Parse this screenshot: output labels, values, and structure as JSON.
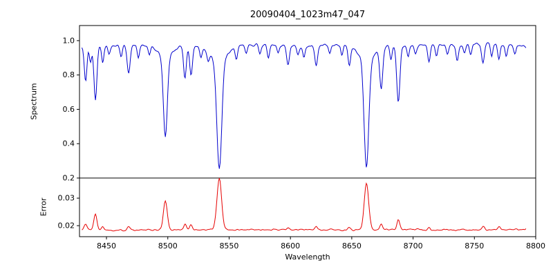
{
  "chart_data": {
    "type": "line",
    "title": "20090404_1023m47_047",
    "xlabel": "Wavelength",
    "x_axis_range": [
      8428,
      8800
    ],
    "x_data_range": [
      8430,
      8792
    ],
    "x_ticks": [
      8450,
      8500,
      8550,
      8600,
      8650,
      8700,
      8750,
      8800
    ],
    "x_tick_labels": [
      "8450",
      "8500",
      "8550",
      "8600",
      "8650",
      "8700",
      "8750",
      "8800"
    ],
    "axis_color": "#000000",
    "background": "#ffffff",
    "subplots": [
      {
        "name": "spectrum",
        "ylabel": "Spectrum",
        "color": "#0000cc",
        "ylim": [
          0.2,
          1.088
        ],
        "y_ticks": [
          0.2,
          0.4,
          0.6,
          0.8,
          1.0
        ],
        "y_tick_labels": [
          "0.2",
          "0.4",
          "0.6",
          "0.8",
          "1.0"
        ],
        "continuum": 0.972,
        "noise_amplitude": 0.012,
        "absorption_lines": [
          {
            "center": 8427,
            "depth": 0.06,
            "width": 1.0
          },
          {
            "center": 8433,
            "depth": 0.2,
            "width": 1.1
          },
          {
            "center": 8437,
            "depth": 0.1,
            "width": 0.9
          },
          {
            "center": 8441,
            "depth": 0.32,
            "width": 1.2
          },
          {
            "center": 8447,
            "depth": 0.1,
            "width": 0.9
          },
          {
            "center": 8452,
            "depth": 0.05,
            "width": 0.9
          },
          {
            "center": 8462,
            "depth": 0.06,
            "width": 0.9
          },
          {
            "center": 8468,
            "depth": 0.16,
            "width": 1.2
          },
          {
            "center": 8476,
            "depth": 0.07,
            "width": 0.9
          },
          {
            "center": 8485,
            "depth": 0.05,
            "width": 0.9
          },
          {
            "center": 8498,
            "depth": 0.47,
            "width": 1.6
          },
          {
            "center": 8498,
            "depth": 0.06,
            "width": 6.0
          },
          {
            "center": 8514,
            "depth": 0.19,
            "width": 1.1
          },
          {
            "center": 8519,
            "depth": 0.18,
            "width": 1.1
          },
          {
            "center": 8527,
            "depth": 0.06,
            "width": 0.9
          },
          {
            "center": 8533,
            "depth": 0.05,
            "width": 0.9
          },
          {
            "center": 8542,
            "depth": 0.65,
            "width": 2.0
          },
          {
            "center": 8542,
            "depth": 0.07,
            "width": 8.0
          },
          {
            "center": 8556,
            "depth": 0.06,
            "width": 0.9
          },
          {
            "center": 8564,
            "depth": 0.05,
            "width": 0.9
          },
          {
            "center": 8575,
            "depth": 0.05,
            "width": 0.9
          },
          {
            "center": 8582,
            "depth": 0.08,
            "width": 1.0
          },
          {
            "center": 8590,
            "depth": 0.05,
            "width": 0.9
          },
          {
            "center": 8598,
            "depth": 0.11,
            "width": 1.1
          },
          {
            "center": 8606,
            "depth": 0.05,
            "width": 0.9
          },
          {
            "center": 8611,
            "depth": 0.07,
            "width": 0.9
          },
          {
            "center": 8621,
            "depth": 0.12,
            "width": 1.1
          },
          {
            "center": 8632,
            "depth": 0.05,
            "width": 0.9
          },
          {
            "center": 8642,
            "depth": 0.06,
            "width": 0.9
          },
          {
            "center": 8648,
            "depth": 0.11,
            "width": 1.1
          },
          {
            "center": 8662,
            "depth": 0.64,
            "width": 1.9
          },
          {
            "center": 8662,
            "depth": 0.07,
            "width": 7.0
          },
          {
            "center": 8674,
            "depth": 0.24,
            "width": 1.2
          },
          {
            "center": 8682,
            "depth": 0.08,
            "width": 0.9
          },
          {
            "center": 8688,
            "depth": 0.33,
            "width": 1.3
          },
          {
            "center": 8696,
            "depth": 0.06,
            "width": 0.9
          },
          {
            "center": 8702,
            "depth": 0.05,
            "width": 0.9
          },
          {
            "center": 8713,
            "depth": 0.1,
            "width": 1.0
          },
          {
            "center": 8719,
            "depth": 0.07,
            "width": 0.9
          },
          {
            "center": 8728,
            "depth": 0.05,
            "width": 0.9
          },
          {
            "center": 8736,
            "depth": 0.09,
            "width": 1.0
          },
          {
            "center": 8742,
            "depth": 0.05,
            "width": 0.9
          },
          {
            "center": 8747,
            "depth": 0.06,
            "width": 0.9
          },
          {
            "center": 8757,
            "depth": 0.11,
            "width": 1.1
          },
          {
            "center": 8764,
            "depth": 0.07,
            "width": 0.9
          },
          {
            "center": 8770,
            "depth": 0.09,
            "width": 1.0
          },
          {
            "center": 8776,
            "depth": 0.06,
            "width": 0.9
          },
          {
            "center": 8783,
            "depth": 0.05,
            "width": 0.9
          }
        ]
      },
      {
        "name": "error",
        "ylabel": "Error",
        "color": "#e60000",
        "ylim": [
          0.016,
          0.0373
        ],
        "y_ticks": [
          0.02,
          0.03
        ],
        "y_tick_labels": [
          "0.02",
          "0.03"
        ],
        "baseline": 0.0185,
        "noise_amplitude": 0.00045,
        "peaks": [
          {
            "center": 8420,
            "height": 0.0012,
            "width": 6.0
          },
          {
            "center": 8433,
            "height": 0.002,
            "width": 1.1
          },
          {
            "center": 8441,
            "height": 0.0055,
            "width": 1.3
          },
          {
            "center": 8447,
            "height": 0.0012,
            "width": 1.0
          },
          {
            "center": 8468,
            "height": 0.0015,
            "width": 1.1
          },
          {
            "center": 8498,
            "height": 0.0105,
            "width": 1.6
          },
          {
            "center": 8514,
            "height": 0.002,
            "width": 1.1
          },
          {
            "center": 8519,
            "height": 0.0018,
            "width": 1.1
          },
          {
            "center": 8542,
            "height": 0.0185,
            "width": 1.9
          },
          {
            "center": 8598,
            "height": 0.001,
            "width": 1.0
          },
          {
            "center": 8621,
            "height": 0.001,
            "width": 1.0
          },
          {
            "center": 8648,
            "height": 0.001,
            "width": 1.0
          },
          {
            "center": 8662,
            "height": 0.017,
            "width": 1.8
          },
          {
            "center": 8674,
            "height": 0.002,
            "width": 1.1
          },
          {
            "center": 8688,
            "height": 0.0035,
            "width": 1.2
          },
          {
            "center": 8713,
            "height": 0.001,
            "width": 1.0
          },
          {
            "center": 8757,
            "height": 0.0012,
            "width": 1.1
          },
          {
            "center": 8770,
            "height": 0.001,
            "width": 1.0
          }
        ]
      }
    ]
  }
}
